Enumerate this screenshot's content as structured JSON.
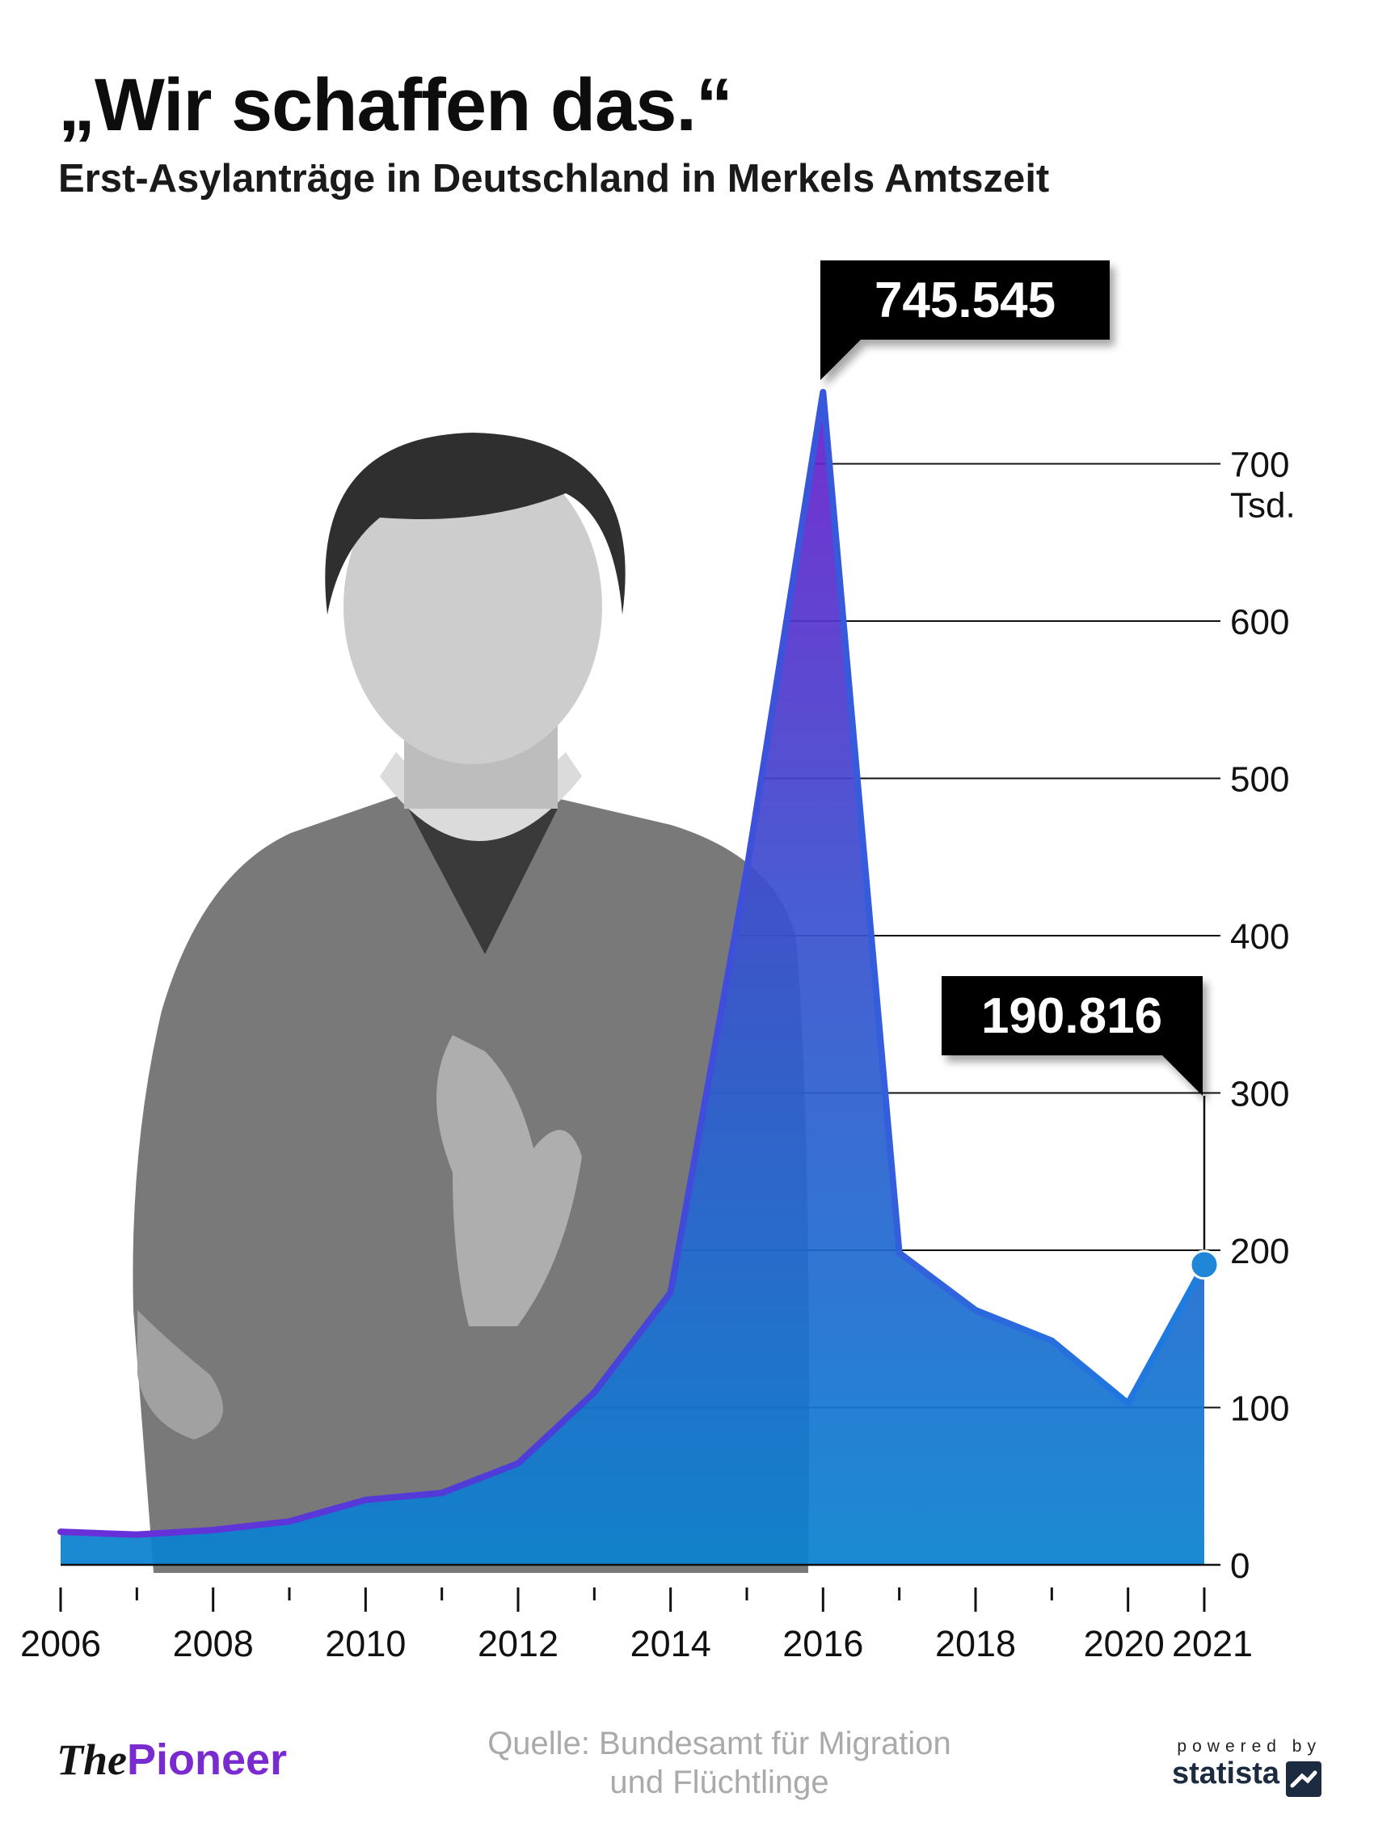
{
  "header": {
    "title": "„Wir schaffen das.“",
    "subtitle": "Erst-Asylanträge in Deutschland in Merkels Amtszeit"
  },
  "chart_data": {
    "type": "area",
    "title": "„Wir schaffen das.“",
    "subtitle": "Erst-Asylanträge in Deutschland in Merkels Amtszeit",
    "x": [
      2006,
      2007,
      2008,
      2009,
      2010,
      2011,
      2012,
      2013,
      2014,
      2015,
      2016,
      2017,
      2018,
      2019,
      2020,
      2021
    ],
    "values": [
      21.0,
      19.2,
      22.1,
      27.6,
      41.3,
      45.7,
      64.5,
      109.6,
      173.1,
      441.9,
      745.545,
      198.3,
      161.9,
      142.5,
      102.6,
      190.816
    ],
    "x_tick_labels": [
      "2006",
      "2008",
      "2010",
      "2012",
      "2014",
      "2016",
      "2018",
      "2020",
      "2021"
    ],
    "y_ticks": [
      0,
      100,
      200,
      300,
      400,
      500,
      600,
      700
    ],
    "y_tick_labels": [
      "0",
      "100",
      "200",
      "300",
      "400",
      "500",
      "600",
      "700"
    ],
    "y_unit": "Tsd.",
    "ylim": [
      0,
      745.545
    ],
    "xlim": [
      2006,
      2021
    ],
    "grid": "horizontal",
    "y_axis_side": "right",
    "annotations": [
      {
        "x": 2016,
        "text": "745.545"
      },
      {
        "x": 2021,
        "text": "190.816"
      }
    ],
    "colors": {
      "area_top": "#6a1fcc",
      "area_bottom": "#0a82d0",
      "line": "#3b4fd8",
      "grid": "#111111",
      "label_box": "#000000",
      "label_text": "#ffffff",
      "marker": "#1f86d8"
    }
  },
  "background_image": {
    "icon": "portrait-photo-icon"
  },
  "footer": {
    "brand_the": "The",
    "brand_pioneer": "Pioneer",
    "source_line1": "Quelle: Bundesamt für Migration",
    "source_line2": "und Flüchtlinge",
    "powered_by": "powered by",
    "statista": "statista",
    "statista_icon": "statista-logo-icon"
  }
}
